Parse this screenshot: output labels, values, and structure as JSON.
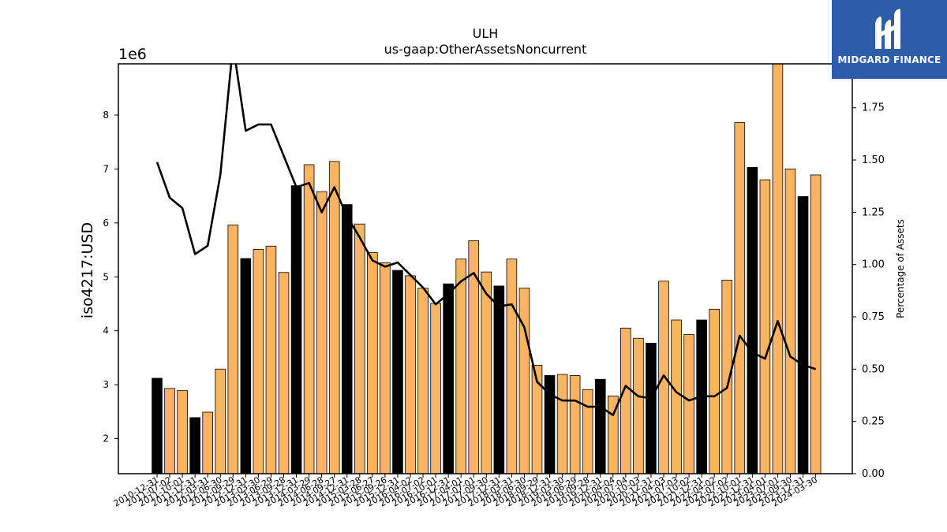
{
  "chart_data": {
    "type": "bar",
    "title": "ULH",
    "subtitle": "us-gaap:OtherAssetsNoncurrent",
    "ylabel": "iso4217:USD",
    "y2label": "Percentage of Assets",
    "y_offset_label": "1e6",
    "ylim": [
      1.35,
      8.95
    ],
    "y2lim": [
      0,
      1.96
    ],
    "yticks": [
      "2",
      "3",
      "4",
      "5",
      "6",
      "7",
      "8"
    ],
    "y2ticks": [
      "0.00",
      "0.25",
      "0.50",
      "0.75",
      "1.00",
      "1.25",
      "1.50",
      "1.75"
    ],
    "categories": [
      "2010-12-31",
      "2011-07-02",
      "2011-10-01",
      "2011-12-31",
      "2012-03-31",
      "2012-06-30",
      "2012-09-29",
      "2012-12-31",
      "2013-03-30",
      "2013-06-29",
      "2013-09-28",
      "2013-12-31",
      "2014-03-29",
      "2014-06-28",
      "2014-09-27",
      "2014-12-31",
      "2015-03-28",
      "2015-06-27",
      "2015-09-26",
      "2015-12-31",
      "2016-04-02",
      "2016-07-02",
      "2016-10-01",
      "2016-12-31",
      "2017-04-01",
      "2017-07-01",
      "2017-09-30",
      "2017-12-31",
      "2018-03-31",
      "2018-06-30",
      "2018-09-29",
      "2018-12-31",
      "2019-03-30",
      "2019-06-29",
      "2019-09-28",
      "2019-12-31",
      "2020-04-04",
      "2020-07-04",
      "2020-10-03",
      "2020-12-31",
      "2021-04-03",
      "2021-07-03",
      "2021-10-02",
      "2021-12-31",
      "2022-04-02",
      "2022-07-02",
      "2022-10-01",
      "2022-12-31",
      "2023-04-01",
      "2023-07-01",
      "2023-09-30",
      "2023-12-31",
      "2024-03-30"
    ],
    "values": [
      3.12,
      2.93,
      2.89,
      2.39,
      2.49,
      3.29,
      5.96,
      5.34,
      5.51,
      5.57,
      5.08,
      6.69,
      7.08,
      6.58,
      7.14,
      6.34,
      5.98,
      5.45,
      5.26,
      5.12,
      5.02,
      4.79,
      4.51,
      4.87,
      5.33,
      5.67,
      5.09,
      4.83,
      5.33,
      4.79,
      3.36,
      3.17,
      3.19,
      3.17,
      2.91,
      3.1,
      2.79,
      4.05,
      3.86,
      3.77,
      4.92,
      4.2,
      3.93,
      4.2,
      4.4,
      4.94,
      7.86,
      7.03,
      6.8,
      9.0,
      7.0,
      6.49,
      6.89
    ],
    "year_end": [
      true,
      false,
      false,
      true,
      false,
      false,
      false,
      true,
      false,
      false,
      false,
      true,
      false,
      false,
      false,
      true,
      false,
      false,
      false,
      true,
      false,
      false,
      false,
      true,
      false,
      false,
      false,
      true,
      false,
      false,
      false,
      true,
      false,
      false,
      false,
      true,
      false,
      false,
      false,
      true,
      false,
      false,
      false,
      true,
      false,
      false,
      false,
      true,
      false,
      false,
      false,
      true,
      false
    ],
    "percent_of_assets": [
      1.49,
      1.32,
      1.27,
      1.05,
      1.09,
      1.43,
      2.05,
      1.64,
      1.67,
      1.67,
      1.52,
      1.37,
      1.39,
      1.25,
      1.37,
      1.23,
      1.13,
      1.02,
      0.99,
      1.01,
      0.95,
      0.89,
      0.81,
      0.86,
      0.92,
      0.96,
      0.86,
      0.8,
      0.81,
      0.7,
      0.44,
      0.38,
      0.35,
      0.35,
      0.32,
      0.32,
      0.28,
      0.42,
      0.37,
      0.36,
      0.47,
      0.39,
      0.35,
      0.37,
      0.37,
      0.41,
      0.66,
      0.58,
      0.55,
      0.73,
      0.56,
      0.52,
      0.5
    ],
    "colors": {
      "bar_year_end": "#000000",
      "bar_other": "#fdb462",
      "line": "#000000"
    },
    "grid": false,
    "legend": "none"
  },
  "logo": {
    "text": "MIDGARD FINANCE",
    "icon": "midgard-logo-icon",
    "color": "#2d5ca8"
  }
}
